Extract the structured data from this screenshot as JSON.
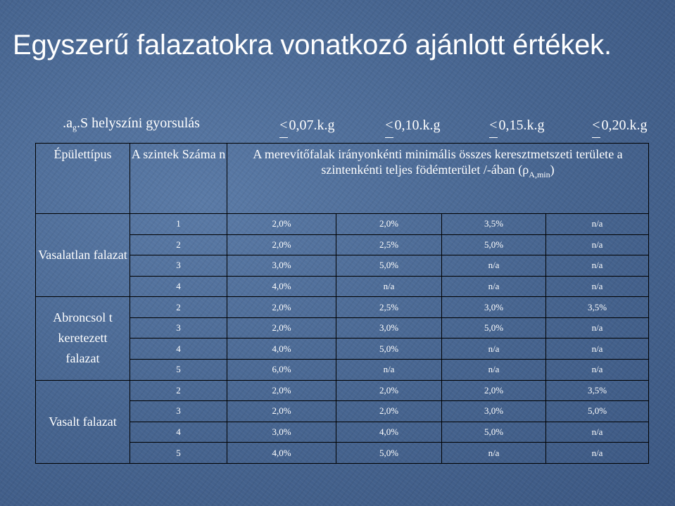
{
  "title": "Egyszerű falazatokra vonatkozó ajánlott értékek.",
  "header_row": {
    "acceleration_prefix": ".a",
    "acceleration_sub": "g",
    "acceleration_suffix": ".S helyszíni gyorsulás",
    "limits": [
      "0,07.k.g",
      "0,10.k.g",
      "0,15.k.g",
      "0,20.k.g"
    ]
  },
  "table_header": {
    "building_type": "Épülettípus",
    "storeys": "A szintek Száma n",
    "description_main": "A merevítőfalak irányonkénti minimális összes keresztmetszeti területe a szintenkénti teljes födémterület /-ában (ρ",
    "description_sub": "A,min",
    "description_close": ")"
  },
  "groups": [
    {
      "name": "Vasalatlan falazat",
      "rows": [
        {
          "n": "1",
          "values": [
            "2,0%",
            "2,0%",
            "3,5%",
            "n/a"
          ]
        },
        {
          "n": "2",
          "values": [
            "2,0%",
            "2,5%",
            "5,0%",
            "n/a"
          ]
        },
        {
          "n": "3",
          "values": [
            "3,0%",
            "5,0%",
            "n/a",
            "n/a"
          ]
        },
        {
          "n": "4",
          "values": [
            "4,0%",
            "n/a",
            "n/a",
            "n/a"
          ]
        }
      ]
    },
    {
      "name": "Abroncsol t keretezett falazat",
      "rows": [
        {
          "n": "2",
          "values": [
            "2,0%",
            "2,5%",
            "3,0%",
            "3,5%"
          ]
        },
        {
          "n": "3",
          "values": [
            "2,0%",
            "3,0%",
            "5,0%",
            "n/a"
          ]
        },
        {
          "n": "4",
          "values": [
            "4,0%",
            "5,0%",
            "n/a",
            "n/a"
          ]
        },
        {
          "n": "5",
          "values": [
            "6,0%",
            "n/a",
            "n/a",
            "n/a"
          ]
        }
      ]
    },
    {
      "name": "Vasalt falazat",
      "rows": [
        {
          "n": "2",
          "values": [
            "2,0%",
            "2,0%",
            "2,0%",
            "3,5%"
          ]
        },
        {
          "n": "3",
          "values": [
            "2,0%",
            "2,0%",
            "3,0%",
            "5,0%"
          ]
        },
        {
          "n": "4",
          "values": [
            "3,0%",
            "4,0%",
            "5,0%",
            "n/a"
          ]
        },
        {
          "n": "5",
          "values": [
            "4,0%",
            "5,0%",
            "n/a",
            "n/a"
          ]
        }
      ]
    }
  ]
}
